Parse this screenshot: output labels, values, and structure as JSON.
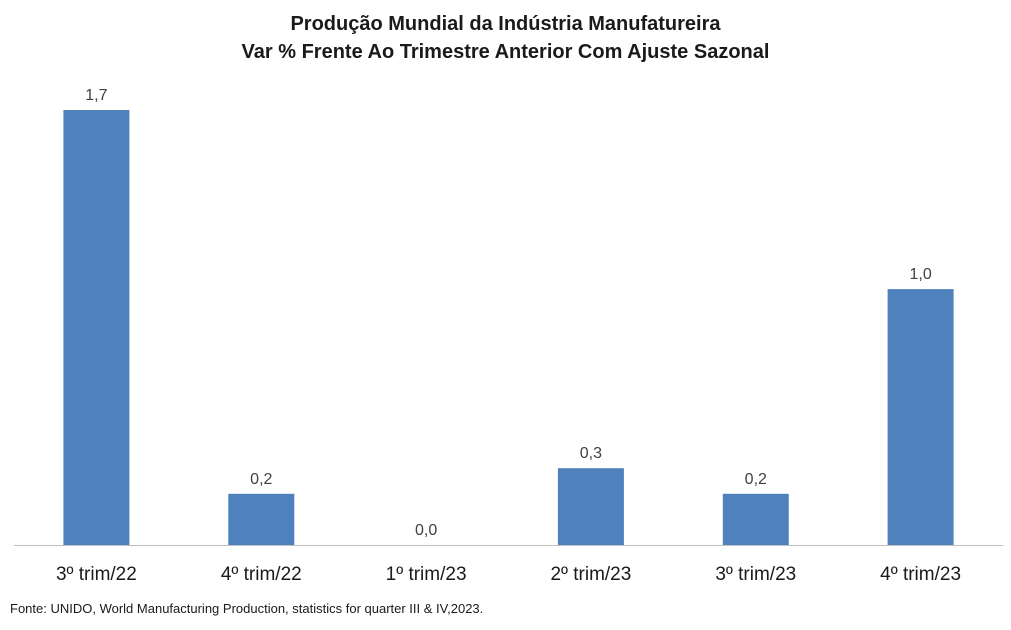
{
  "chart_data": {
    "type": "bar",
    "title": "Produção Mundial da Indústria Manufatureira",
    "subtitle": "Var % Frente Ao Trimestre Anterior Com Ajuste Sazonal",
    "categories": [
      "3º trim/22",
      "4º trim/22",
      "1º trim/23",
      "2º trim/23",
      "3º trim/23",
      "4º trim/23"
    ],
    "values": [
      1.7,
      0.2,
      0.0,
      0.3,
      0.2,
      1.0
    ],
    "value_labels": [
      "1,7",
      "0,2",
      "0,0",
      "0,3",
      "0,2",
      "1,0"
    ],
    "xlabel": "",
    "ylabel": "",
    "ylim": [
      0,
      1.7
    ],
    "grid": false,
    "legend": "none",
    "bar_color": "#4f81bd",
    "axis_color": "#bfbfbf"
  },
  "footer": {
    "source": "Fonte: UNIDO, World Manufacturing Production,  statistics for quarter  III & IV,2023."
  }
}
